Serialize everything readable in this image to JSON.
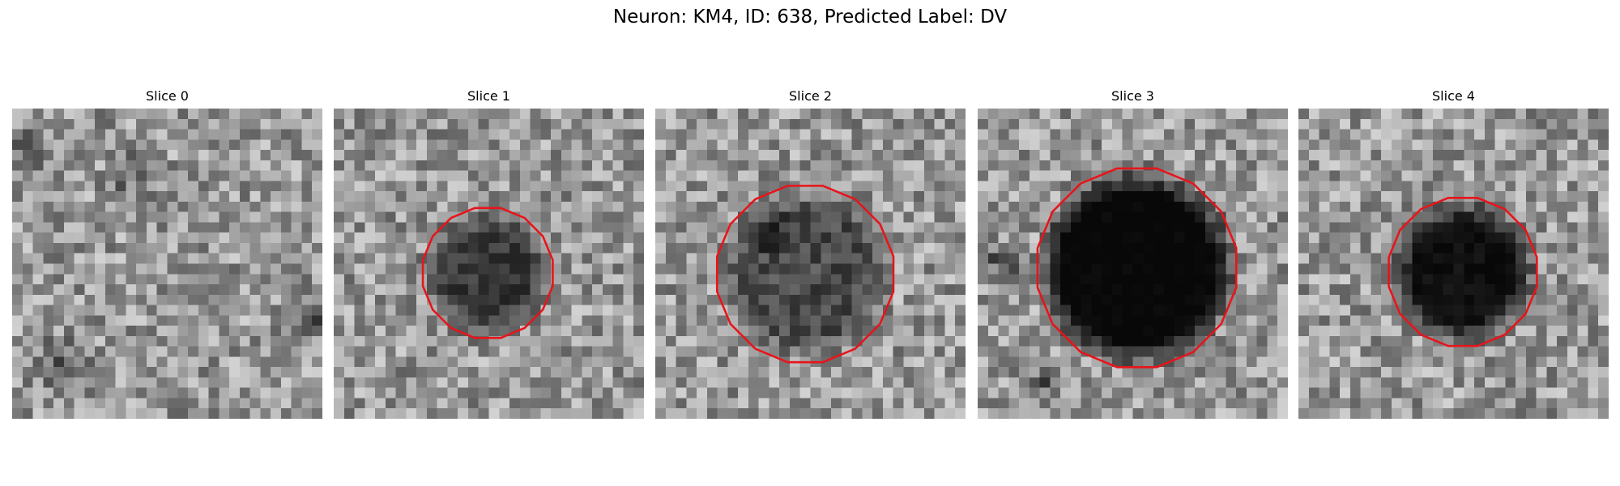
{
  "header": {
    "title": "Neuron: KM4, ID: 638, Predicted Label: DV"
  },
  "panels": [
    {
      "label": "Slice 0"
    },
    {
      "label": "Slice 1"
    },
    {
      "label": "Slice 2"
    },
    {
      "label": "Slice 3"
    },
    {
      "label": "Slice 4"
    }
  ]
}
